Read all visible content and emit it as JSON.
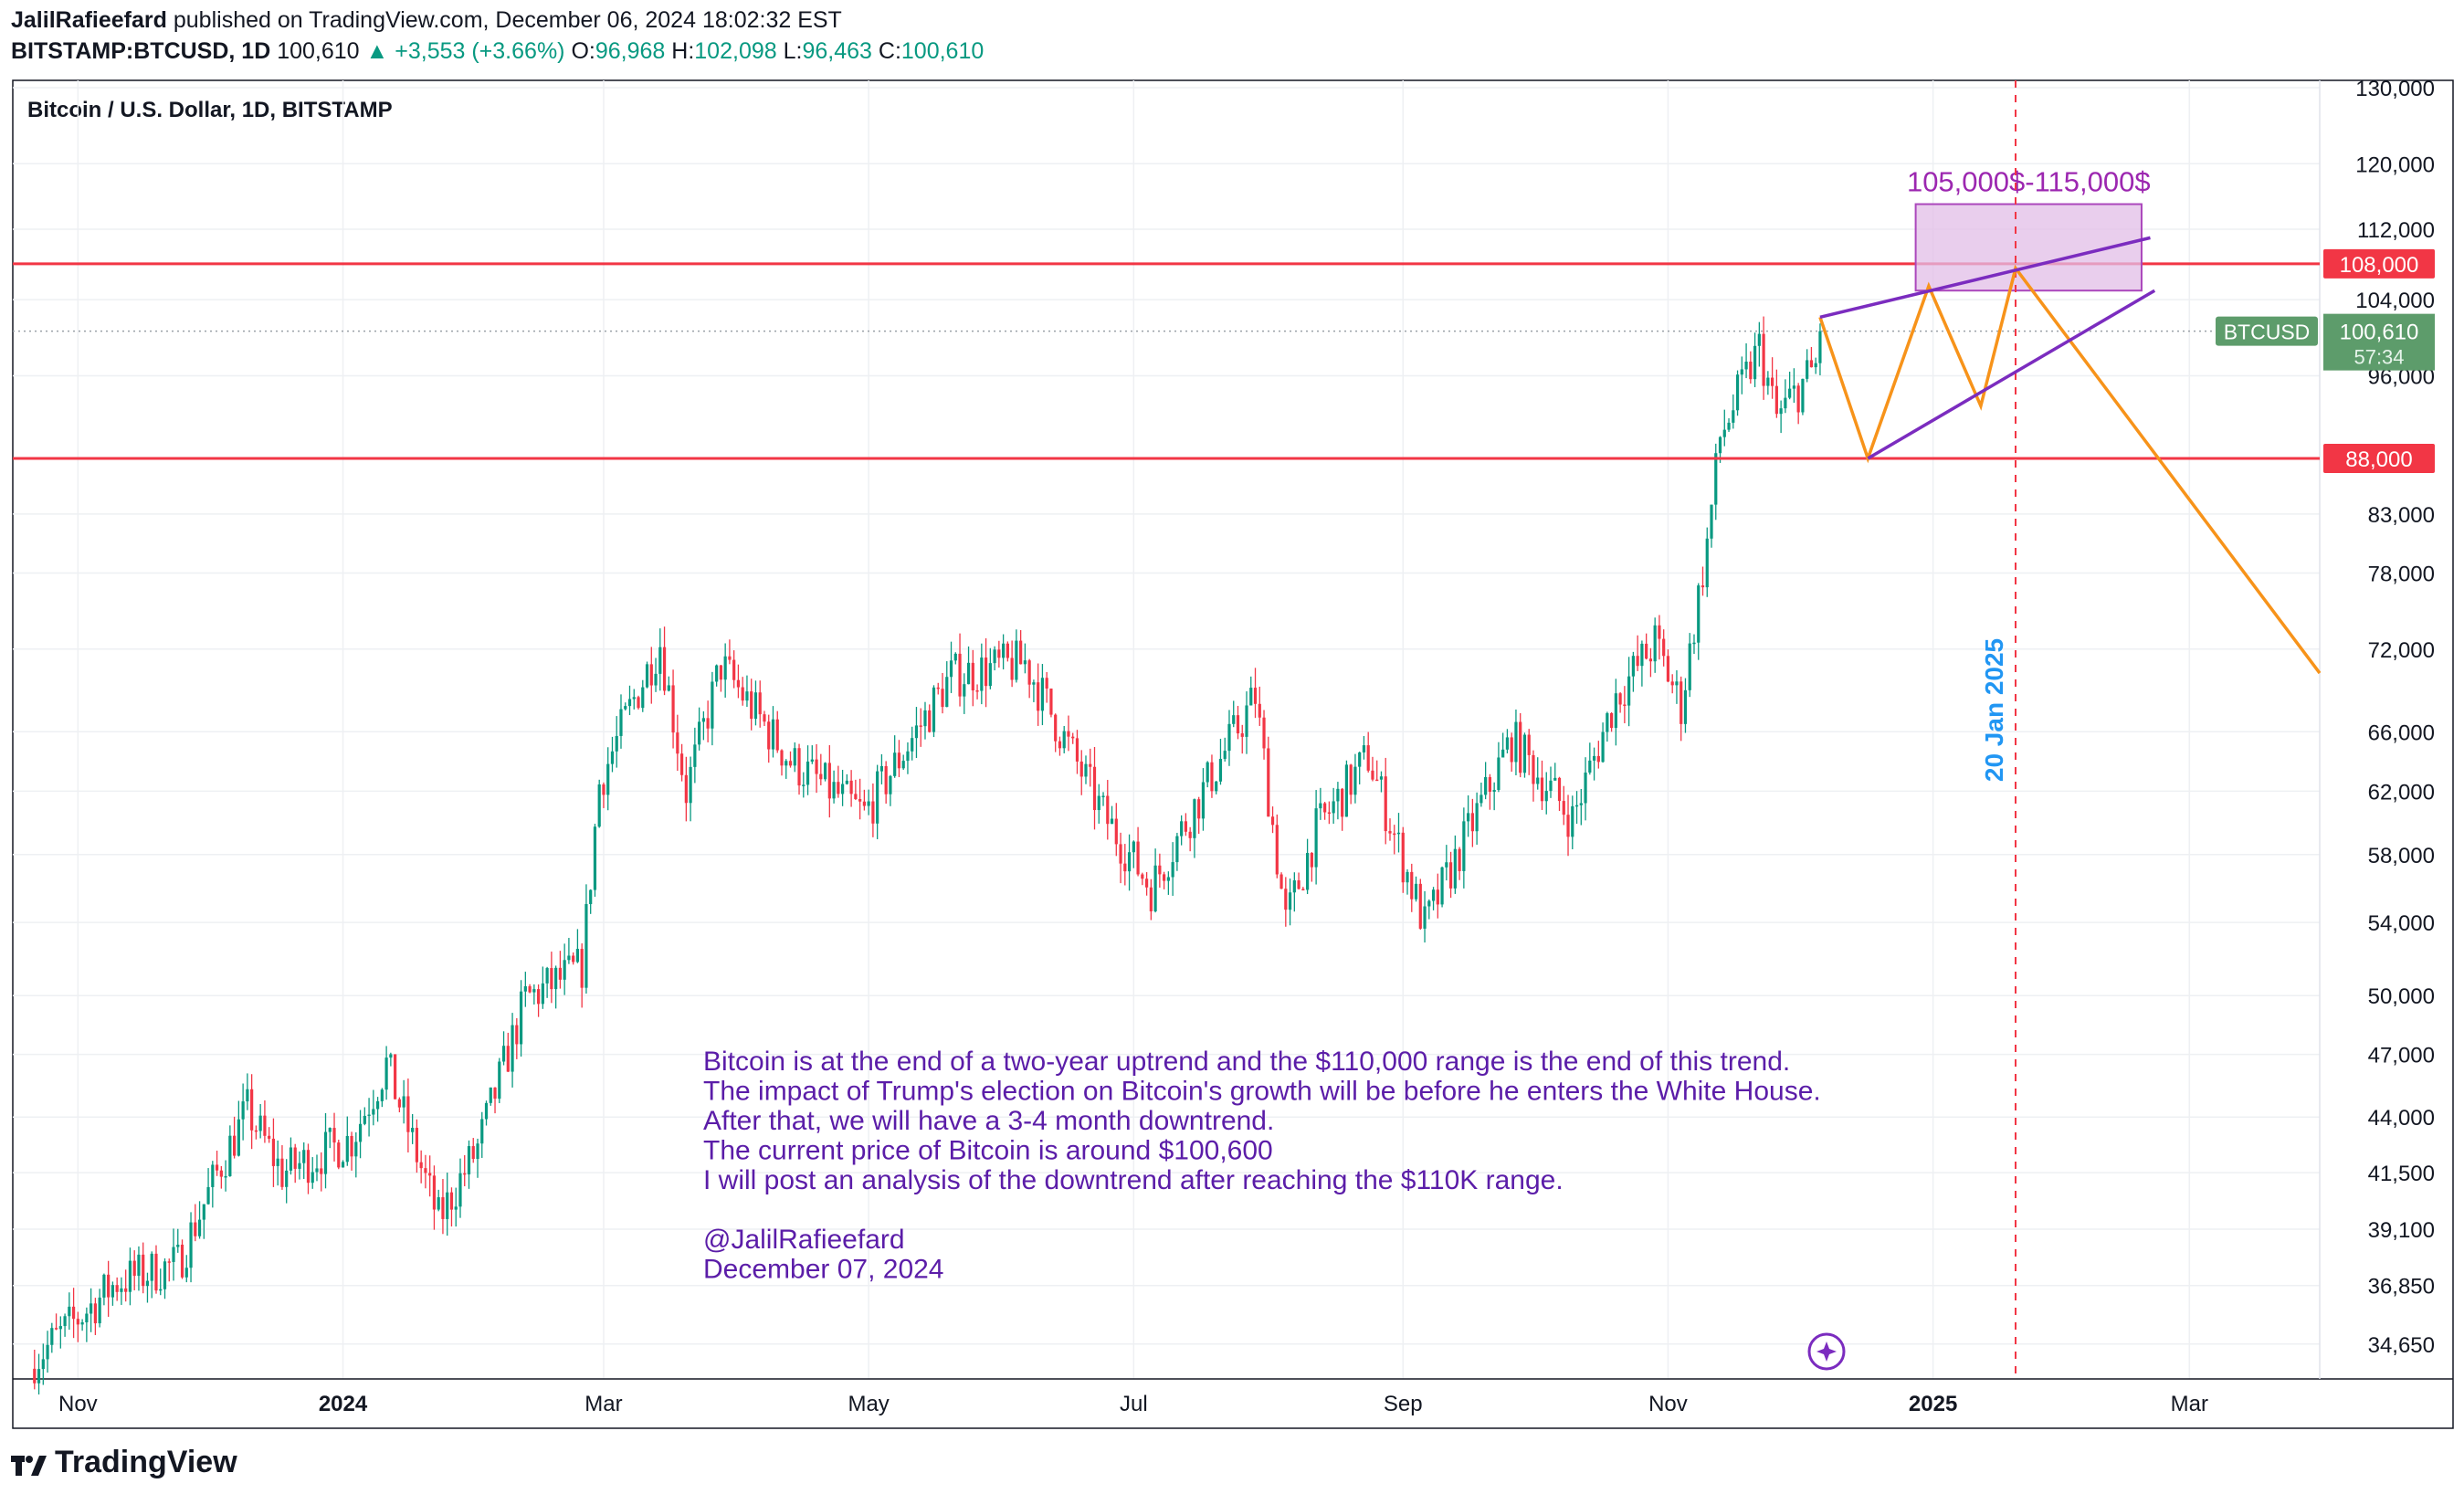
{
  "header": {
    "author": "JalilRafieefard",
    "published_text": "published on TradingView.com, December 06, 2024 18:02:32 EST",
    "symbol": "BITSTAMP:BTCUSD, 1D",
    "last": "100,610",
    "change": "+3,553 (+3.66%)",
    "open_label": "O:",
    "open": "96,968",
    "high_label": "H:",
    "high": "102,098",
    "low_label": "L:",
    "low": "96,463",
    "close_label": "C:",
    "close": "100,610"
  },
  "footer": {
    "brand": "TradingView"
  },
  "chart_data": {
    "type": "candlestick",
    "title": "Bitcoin / U.S. Dollar, 1D, BITSTAMP",
    "scale": "log",
    "grid": true,
    "colors": {
      "up": "#089981",
      "down": "#f23645",
      "level": "#f23645",
      "wedge": "#7b2cbf",
      "path": "#f7931a",
      "zone": "#e1bee7",
      "note": "#5b1da8",
      "event": "#2196f3"
    },
    "x_labels": [
      "Nov",
      "2024",
      "Mar",
      "May",
      "Jul",
      "Sep",
      "Nov",
      "2025",
      "Mar"
    ],
    "x_label_dates": [
      "2023-11-01",
      "2024-01-01",
      "2024-03-01",
      "2024-05-01",
      "2024-07-01",
      "2024-09-01",
      "2024-11-01",
      "2025-01-01",
      "2025-03-01"
    ],
    "y_ticks": [
      "130,000",
      "120,000",
      "112,000",
      "104,000",
      "96,000",
      "88,000",
      "83,000",
      "78,000",
      "72,000",
      "66,000",
      "62,000",
      "58,000",
      "54,000",
      "50,000",
      "47,000",
      "44,000",
      "41,500",
      "39,100",
      "36,850",
      "34,650"
    ],
    "y_tick_values": [
      130000,
      120000,
      112000,
      104000,
      96000,
      88000,
      83000,
      78000,
      72000,
      66000,
      62000,
      58000,
      54000,
      50000,
      47000,
      44000,
      41500,
      39100,
      36850,
      34650
    ],
    "ylim": [
      33400,
      131000
    ],
    "xlim": [
      "2023-10-17",
      "2025-03-31"
    ],
    "price_anchors": [
      [
        "2023-10-22",
        34100
      ],
      [
        "2023-11-10",
        37000
      ],
      [
        "2023-11-24",
        37700
      ],
      [
        "2023-12-04",
        41900
      ],
      [
        "2023-12-10",
        44300
      ],
      [
        "2023-12-18",
        41500
      ],
      [
        "2024-01-03",
        43000
      ],
      [
        "2024-01-11",
        46500
      ],
      [
        "2024-01-23",
        39500
      ],
      [
        "2024-02-01",
        42600
      ],
      [
        "2024-02-12",
        49800
      ],
      [
        "2024-02-25",
        51500
      ],
      [
        "2024-02-29",
        62500
      ],
      [
        "2024-03-08",
        68300
      ],
      [
        "2024-03-14",
        72500
      ],
      [
        "2024-03-20",
        62000
      ],
      [
        "2024-03-28",
        70800
      ],
      [
        "2024-04-13",
        64000
      ],
      [
        "2024-04-30",
        60500
      ],
      [
        "2024-05-20",
        70000
      ],
      [
        "2024-06-06",
        71000
      ],
      [
        "2024-06-24",
        60500
      ],
      [
        "2024-07-05",
        56000
      ],
      [
        "2024-07-14",
        60500
      ],
      [
        "2024-07-29",
        68500
      ],
      [
        "2024-08-05",
        54000
      ],
      [
        "2024-08-12",
        59500
      ],
      [
        "2024-08-24",
        64300
      ],
      [
        "2024-09-06",
        53800
      ],
      [
        "2024-09-26",
        65500
      ],
      [
        "2024-10-10",
        60200
      ],
      [
        "2024-10-20",
        68500
      ],
      [
        "2024-10-29",
        72500
      ],
      [
        "2024-11-04",
        67800
      ],
      [
        "2024-11-10",
        80500
      ],
      [
        "2024-11-13",
        90000
      ],
      [
        "2024-11-22",
        98900
      ],
      [
        "2024-11-26",
        91800
      ],
      [
        "2024-12-05",
        97000
      ],
      [
        "2024-12-06",
        100610
      ]
    ],
    "levels": [
      {
        "price": 108000,
        "label": "108,000"
      },
      {
        "price": 88000,
        "label": "88,000"
      }
    ],
    "last_price": {
      "price": 100610,
      "symbol": "BTCUSD",
      "label": "100,610",
      "countdown": "57:34"
    },
    "target_zone": {
      "label": "105,000$-115,000$",
      "from": "2024-12-28",
      "to": "2025-02-18",
      "low": 105000,
      "high": 115000
    },
    "wedge": [
      [
        [
          "2024-12-06",
          102100
        ],
        [
          "2025-02-20",
          111000
        ]
      ],
      [
        [
          "2024-12-17",
          88000
        ],
        [
          "2025-02-21",
          105000
        ]
      ]
    ],
    "projection": [
      [
        "2024-12-06",
        102100
      ],
      [
        "2024-12-17",
        88000
      ],
      [
        "2024-12-31",
        105500
      ],
      [
        "2025-01-12",
        93000
      ],
      [
        "2025-01-20",
        107500
      ],
      [
        "2025-03-31",
        70200
      ]
    ],
    "event_line": {
      "date": "2025-01-20",
      "label": "20 Jan 2025"
    },
    "annotation": [
      "Bitcoin is at the end of a two-year uptrend and the $110,000 range is the end of this trend.",
      "The impact of Trump's election on Bitcoin's growth will be before he enters the White House.",
      "After that, we will have a 3-4 month downtrend.",
      "The current price of Bitcoin is around $100,600",
      "I will post an analysis of the downtrend after reaching the $110K range.",
      "",
      "@JalilRafieefard",
      "December 07, 2024"
    ]
  }
}
